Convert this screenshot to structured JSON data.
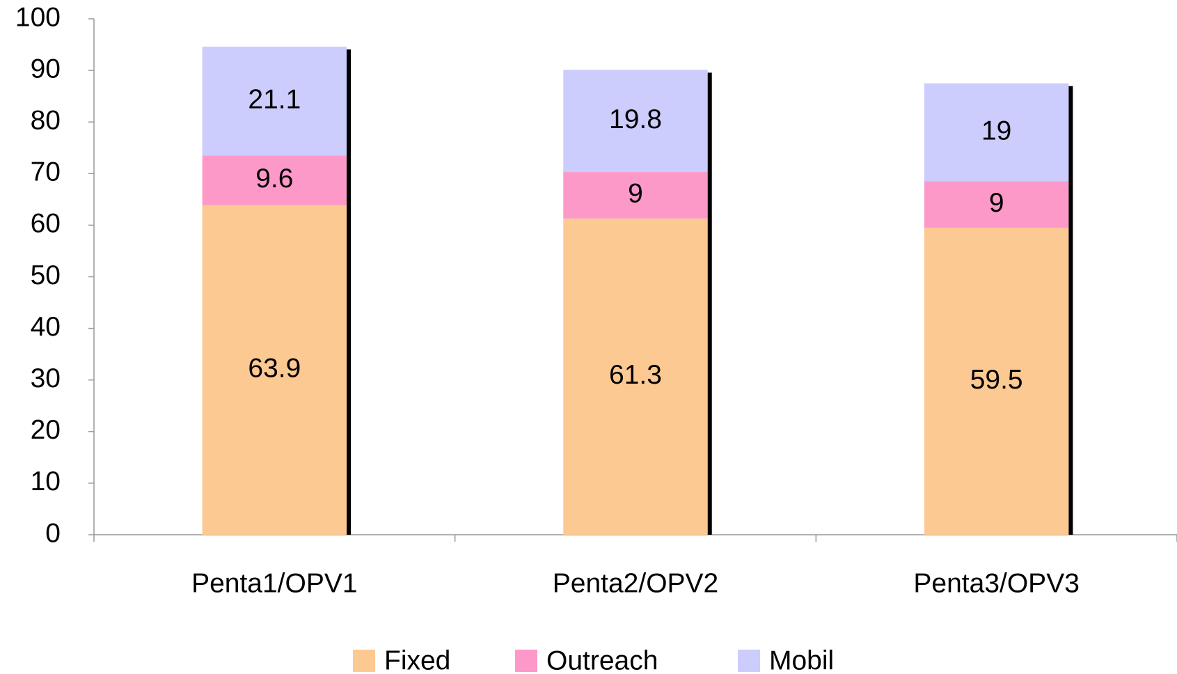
{
  "chart_data": {
    "type": "stacked_bar",
    "categories": [
      "Penta1/OPV1",
      "Penta2/OPV2",
      "Penta3/OPV3"
    ],
    "series": [
      {
        "name": "Fixed",
        "color": "#fdc993",
        "values": [
          63.9,
          61.3,
          59.5
        ]
      },
      {
        "name": "Outreach",
        "color": "#fc99c9",
        "values": [
          9.6,
          9,
          9
        ]
      },
      {
        "name": "Mobil",
        "color": "#ccccfd",
        "values": [
          21.1,
          19.8,
          19
        ]
      }
    ],
    "ylim": [
      0,
      100
    ],
    "yticks": [
      0,
      10,
      20,
      30,
      40,
      50,
      60,
      70,
      80,
      90,
      100
    ],
    "grid": false,
    "legend": "bottom"
  }
}
